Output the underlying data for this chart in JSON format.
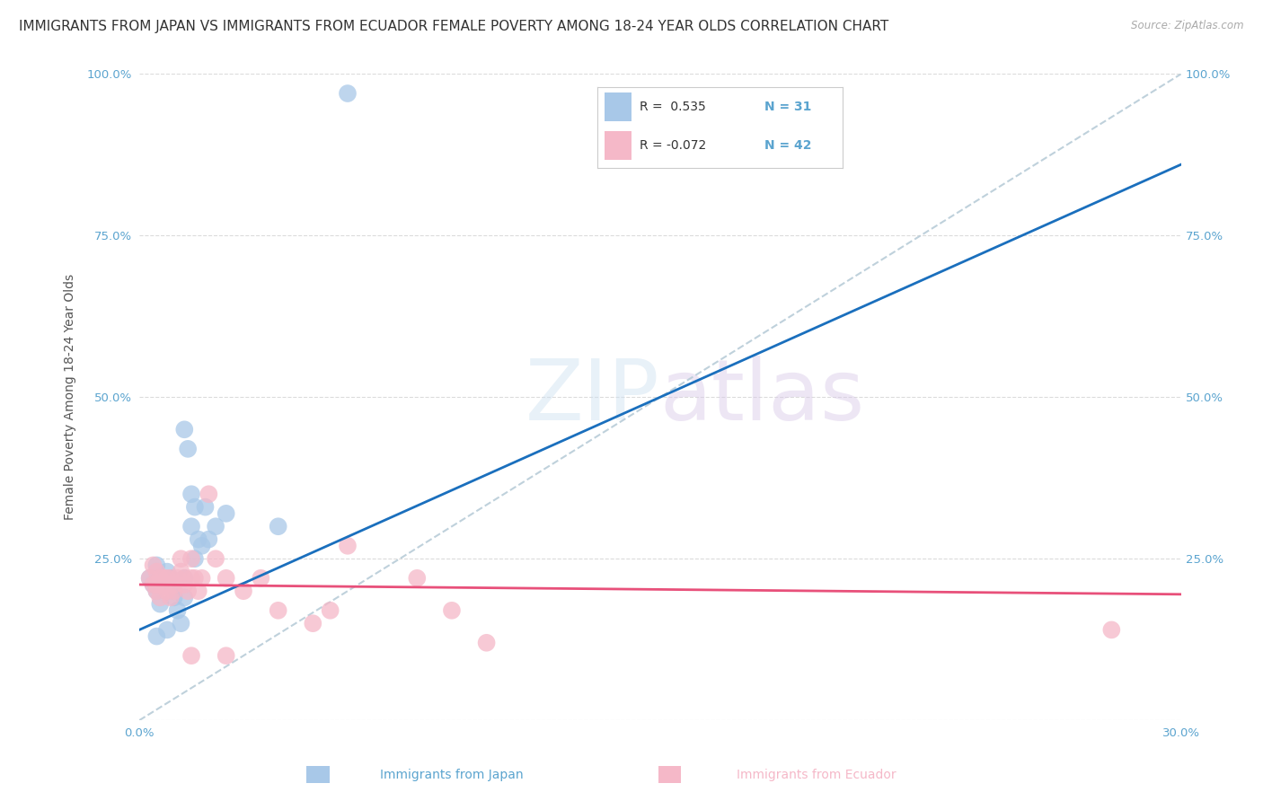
{
  "title": "IMMIGRANTS FROM JAPAN VS IMMIGRANTS FROM ECUADOR FEMALE POVERTY AMONG 18-24 YEAR OLDS CORRELATION CHART",
  "source": "Source: ZipAtlas.com",
  "ylabel": "Female Poverty Among 18-24 Year Olds",
  "xlim": [
    0.0,
    0.3
  ],
  "ylim": [
    0.0,
    1.0
  ],
  "x_ticks": [
    0.0,
    0.05,
    0.1,
    0.15,
    0.2,
    0.25,
    0.3
  ],
  "y_ticks": [
    0.0,
    0.25,
    0.5,
    0.75,
    1.0
  ],
  "y_tick_labels": [
    "",
    "25.0%",
    "50.0%",
    "75.0%",
    "100.0%"
  ],
  "japan_color": "#a8c8e8",
  "ecuador_color": "#f5b8c8",
  "japan_line_color": "#1a6fbd",
  "ecuador_line_color": "#e8507a",
  "diagonal_color": "#b8ccd8",
  "R_japan": 0.535,
  "N_japan": 31,
  "R_ecuador": -0.072,
  "N_ecuador": 42,
  "japan_scatter": [
    [
      0.003,
      0.22
    ],
    [
      0.004,
      0.21
    ],
    [
      0.005,
      0.24
    ],
    [
      0.005,
      0.2
    ],
    [
      0.005,
      0.13
    ],
    [
      0.006,
      0.22
    ],
    [
      0.006,
      0.18
    ],
    [
      0.007,
      0.21
    ],
    [
      0.008,
      0.23
    ],
    [
      0.008,
      0.14
    ],
    [
      0.009,
      0.22
    ],
    [
      0.01,
      0.2
    ],
    [
      0.01,
      0.19
    ],
    [
      0.011,
      0.17
    ],
    [
      0.012,
      0.15
    ],
    [
      0.013,
      0.22
    ],
    [
      0.013,
      0.19
    ],
    [
      0.013,
      0.45
    ],
    [
      0.014,
      0.42
    ],
    [
      0.015,
      0.35
    ],
    [
      0.015,
      0.3
    ],
    [
      0.016,
      0.33
    ],
    [
      0.016,
      0.25
    ],
    [
      0.017,
      0.28
    ],
    [
      0.018,
      0.27
    ],
    [
      0.019,
      0.33
    ],
    [
      0.02,
      0.28
    ],
    [
      0.022,
      0.3
    ],
    [
      0.025,
      0.32
    ],
    [
      0.04,
      0.3
    ],
    [
      0.06,
      0.97
    ]
  ],
  "ecuador_scatter": [
    [
      0.003,
      0.22
    ],
    [
      0.004,
      0.24
    ],
    [
      0.004,
      0.21
    ],
    [
      0.005,
      0.23
    ],
    [
      0.005,
      0.21
    ],
    [
      0.005,
      0.2
    ],
    [
      0.006,
      0.22
    ],
    [
      0.006,
      0.19
    ],
    [
      0.007,
      0.22
    ],
    [
      0.007,
      0.21
    ],
    [
      0.008,
      0.22
    ],
    [
      0.008,
      0.2
    ],
    [
      0.009,
      0.19
    ],
    [
      0.009,
      0.22
    ],
    [
      0.01,
      0.21
    ],
    [
      0.01,
      0.2
    ],
    [
      0.011,
      0.22
    ],
    [
      0.012,
      0.25
    ],
    [
      0.012,
      0.23
    ],
    [
      0.013,
      0.22
    ],
    [
      0.013,
      0.21
    ],
    [
      0.014,
      0.2
    ],
    [
      0.015,
      0.22
    ],
    [
      0.015,
      0.25
    ],
    [
      0.016,
      0.22
    ],
    [
      0.017,
      0.2
    ],
    [
      0.018,
      0.22
    ],
    [
      0.02,
      0.35
    ],
    [
      0.022,
      0.25
    ],
    [
      0.025,
      0.22
    ],
    [
      0.03,
      0.2
    ],
    [
      0.035,
      0.22
    ],
    [
      0.04,
      0.17
    ],
    [
      0.05,
      0.15
    ],
    [
      0.055,
      0.17
    ],
    [
      0.06,
      0.27
    ],
    [
      0.08,
      0.22
    ],
    [
      0.09,
      0.17
    ],
    [
      0.1,
      0.12
    ],
    [
      0.015,
      0.1
    ],
    [
      0.025,
      0.1
    ],
    [
      0.28,
      0.14
    ]
  ],
  "japan_line": [
    0.0,
    0.3
  ],
  "ecuador_line": [
    0.0,
    0.3
  ],
  "watermark_zip": "ZIP",
  "watermark_atlas": "atlas",
  "background_color": "#ffffff",
  "grid_color": "#cccccc",
  "title_fontsize": 11,
  "axis_label_fontsize": 10,
  "tick_fontsize": 9.5,
  "tick_color": "#5ba4cf"
}
